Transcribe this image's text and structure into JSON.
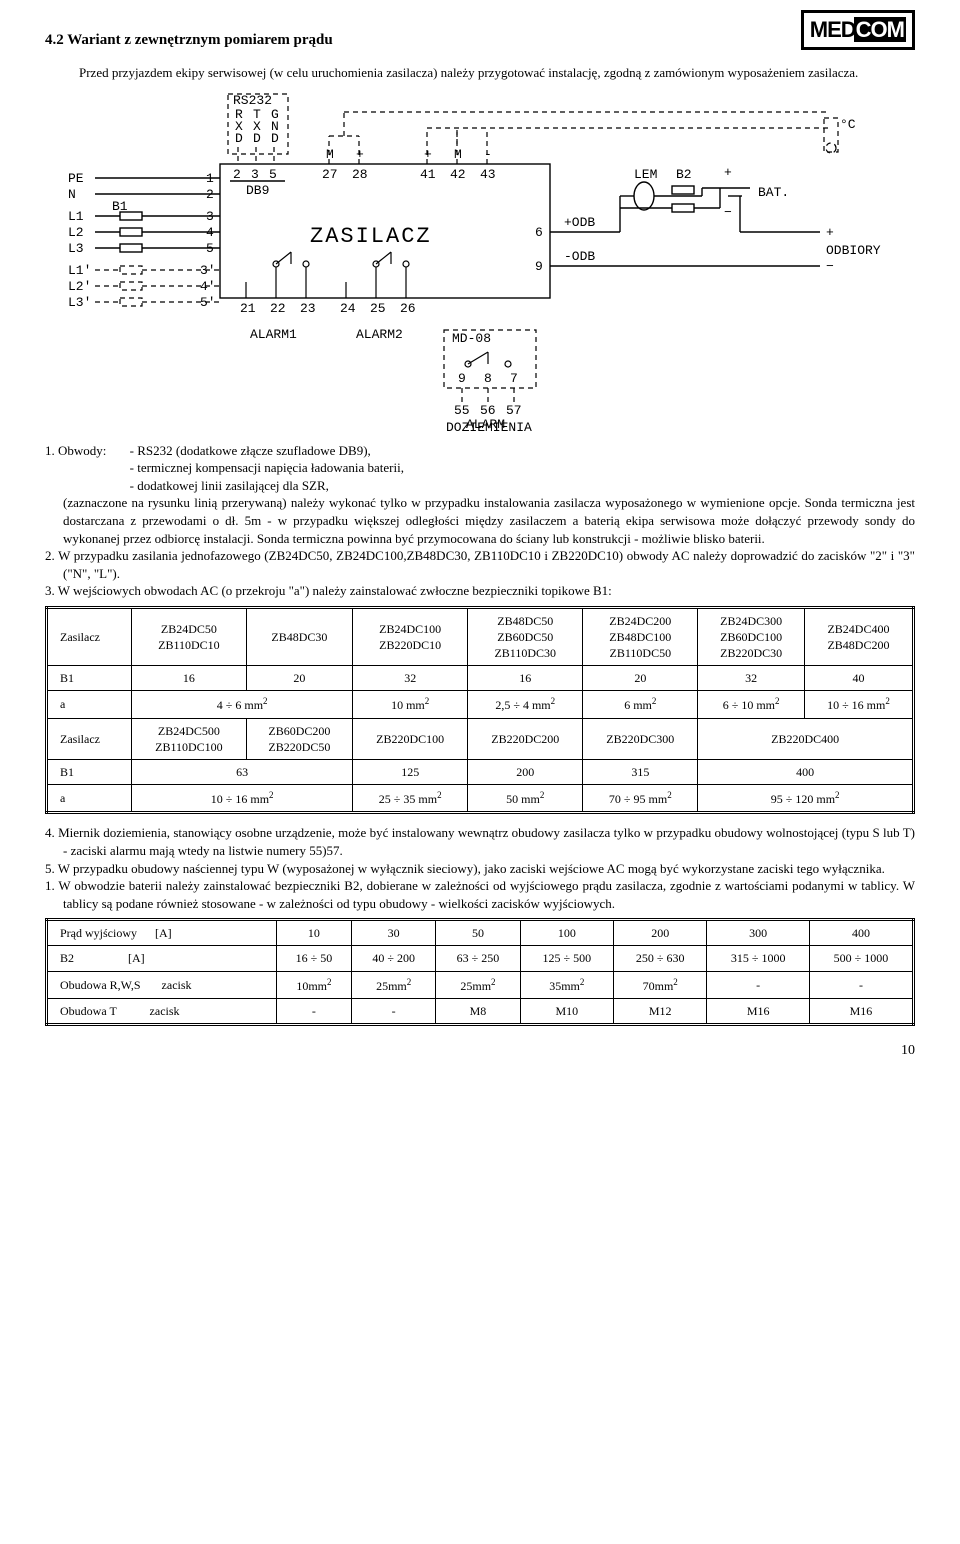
{
  "logo": {
    "part1": "MED",
    "part2": "COM"
  },
  "heading": "4.2 Wariant z zewnętrznym pomiarem prądu",
  "intro": "Przed przyjazdem ekipy serwisowej (w celu uruchomienia zasilacza) należy przygotować instalację, zgodną z zamówionym wyposażeniem zasilacza.",
  "diagram": {
    "rs232": "RS232",
    "rxd": "R\nX\nD",
    "txd": "T\nX\nD",
    "gnd": "G\nN\nD",
    "db9": "DB9",
    "db9_pins": [
      "2",
      "3",
      "5"
    ],
    "left_labels": [
      "PE",
      "N",
      "L1",
      "L2",
      "L3",
      "L1'",
      "L2'",
      "L3'"
    ],
    "b1": "B1",
    "left_pins": [
      "1",
      "2",
      "3",
      "4",
      "5",
      "3'",
      "4'",
      "5'"
    ],
    "top_pins": [
      "27",
      "28",
      "41",
      "42",
      "43"
    ],
    "top_sigs": [
      "M",
      "+",
      "+",
      "M",
      "-"
    ],
    "zasilacz": "ZASILACZ",
    "right_pins": [
      "6",
      "9"
    ],
    "right_sigs": [
      "+ODB",
      "-ODB"
    ],
    "bottom_pins": [
      "21",
      "22",
      "23",
      "24",
      "25",
      "26"
    ],
    "alarm1": "ALARM1",
    "alarm2": "ALARM2",
    "md08": "MD-08",
    "md_pins": [
      "9",
      "8",
      "7"
    ],
    "md_out": [
      "55",
      "56",
      "57"
    ],
    "alarm_doz": "ALARM\nDOZIEMIENIA",
    "lem": "LEM",
    "b2": "B2",
    "bat": "BAT.",
    "odbiory": "ODBIORY",
    "tc": "°C",
    "plus": "+",
    "minus": "-"
  },
  "note1_lead": "1.  Obwody:",
  "note1_items": [
    "- RS232 (dodatkowe złącze szufladowe DB9),",
    "- termicznej kompensacji napięcia ładowania baterii,",
    "- dodatkowej linii zasilającej dla SZR,"
  ],
  "note1_rest": "(zaznaczone na rysunku linią przerywaną) należy wykonać tylko w przypadku instalowania zasilacza wyposażonego w wymienione opcje. Sonda termiczna jest dostarczana z przewodami o dł. 5m - w przypadku większej odległości między zasilaczem a baterią ekipa serwisowa może dołączyć przewody sondy do wykonanej przez odbiorcę instalacji. Sonda termiczna powinna być przymocowana do ściany lub konstrukcji - możliwie blisko baterii.",
  "note2": "2.  W przypadku zasilania jednofazowego (ZB24DC50, ZB24DC100,ZB48DC30, ZB110DC10 i ZB220DC10) obwody AC należy doprowadzić do zacisków \"2\" i \"3\" (\"N\", \"L\").",
  "note3": "3.  W wejściowych obwodach AC (o przekroju \"a\") należy zainstalować zwłoczne bezpieczniki topikowe B1:",
  "table1": {
    "rows": [
      [
        "Zasilacz",
        "ZB24DC50\nZB110DC10",
        "ZB48DC30",
        "ZB24DC100\nZB220DC10",
        "ZB48DC50\nZB60DC50\nZB110DC30",
        "ZB24DC200\nZB48DC100\nZB110DC50",
        "ZB24DC300\nZB60DC100\nZB220DC30",
        "ZB24DC400\nZB48DC200"
      ],
      [
        "B1",
        "16",
        "20",
        "32",
        "16",
        "20",
        "32",
        "40"
      ],
      [
        "a",
        "4 ÷ 6 mm²",
        "",
        "10 mm²",
        "2,5 ÷ 4 mm²",
        "6 mm²",
        "6 ÷ 10 mm²",
        "10 ÷ 16 mm²"
      ],
      [
        "Zasilacz",
        "ZB24DC500\nZB110DC100",
        "ZB60DC200\nZB220DC50",
        "ZB220DC100",
        "ZB220DC200",
        "ZB220DC300",
        "ZB220DC400",
        ""
      ],
      [
        "B1",
        "63",
        "",
        "125",
        "200",
        "315",
        "400",
        ""
      ],
      [
        "a",
        "10 ÷ 16 mm²",
        "",
        "25 ÷ 35 mm²",
        "50 mm²",
        "70 ÷ 95 mm²",
        "95 ÷ 120 mm²",
        ""
      ]
    ]
  },
  "note4": "4.  Miernik doziemienia, stanowiący osobne urządzenie, może być instalowany wewnątrz obudowy zasilacza tylko w przypadku obudowy wolnostojącej (typu S lub T) - zaciski alarmu mają wtedy na listwie numery 55)57.",
  "note5": "5.  W przypadku obudowy naściennej typu W (wyposażonej w wyłącznik sieciowy), jako zaciski wejściowe AC mogą być wykorzystane zaciski tego wyłącznika.",
  "note6": "1.  W obwodzie baterii należy zainstalować bezpieczniki B2, dobierane w zależności od wyjściowego prądu zasilacza, zgodnie z wartościami podanymi w tablicy. W tablicy są podane również stosowane - w zależności od typu obudowy - wielkości zacisków wyjściowych.",
  "table2": {
    "rows": [
      [
        "Prąd wyjściowy      [A]",
        "10",
        "30",
        "50",
        "100",
        "200",
        "300",
        "400"
      ],
      [
        "B2                  [A]",
        "16 ÷ 50",
        "40 ÷ 200",
        "63 ÷ 250",
        "125 ÷ 500",
        "250 ÷ 630",
        "315 ÷ 1000",
        "500 ÷ 1000"
      ],
      [
        "Obudowa R,W,S       zacisk",
        "10mm²",
        "25mm²",
        "25mm²",
        "35mm²",
        "70mm²",
        "-",
        "-"
      ],
      [
        "Obudowa T           zacisk",
        "-",
        "-",
        "M8",
        "M10",
        "M12",
        "M16",
        "M16"
      ]
    ]
  },
  "page": "10"
}
